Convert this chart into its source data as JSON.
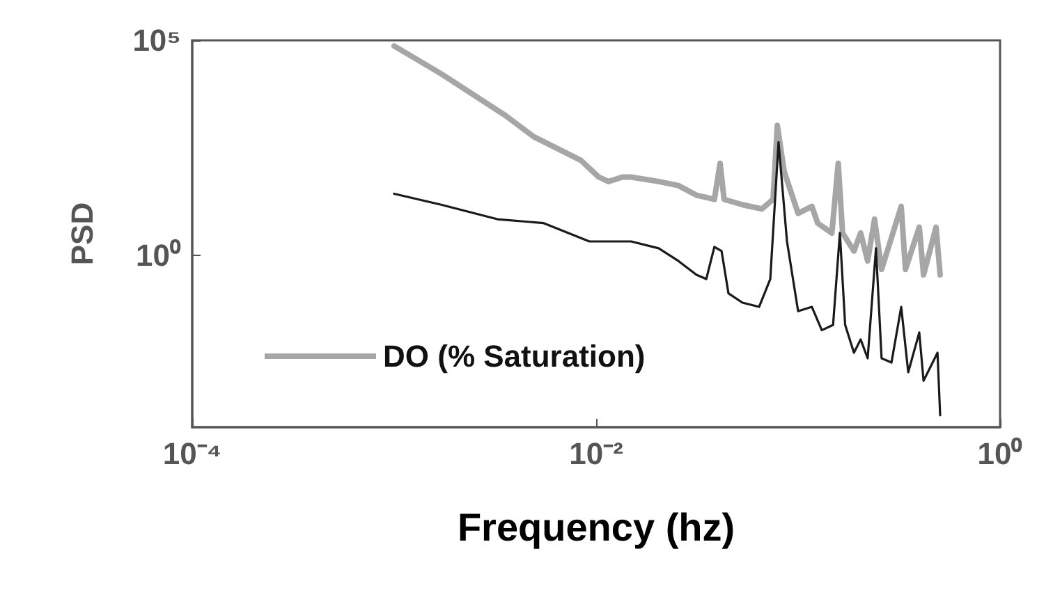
{
  "chart_data": {
    "type": "line",
    "xlabel": "Frequency (hz)",
    "ylabel": "PSD",
    "log": "xy",
    "grid": false,
    "legend": "bottom left",
    "marker": "none",
    "xlim": [
      0.0001,
      1
    ],
    "xticks": [
      {
        "value": 0.0001,
        "label": "10⁻⁴"
      },
      {
        "value": 0.01,
        "label": "10⁻²"
      },
      {
        "value": 1,
        "label": "10⁰"
      }
    ],
    "ylim": [
      0.0001,
      100000
    ],
    "yticks": [
      {
        "value": 1,
        "label": "10⁰"
      },
      {
        "value": 100000,
        "label": "10⁵"
      }
    ],
    "series": [
      {
        "name": "DO (% Saturation)",
        "color": "#a6a6a6",
        "x": [
          0.001,
          0.00171,
          0.00356,
          0.0049,
          0.0084,
          0.0103,
          0.0115,
          0.0135,
          0.0149,
          0.0204,
          0.0255,
          0.0314,
          0.0385,
          0.0411,
          0.043,
          0.053,
          0.0662,
          0.0752,
          0.0789,
          0.0853,
          0.1,
          0.117,
          0.125,
          0.147,
          0.158,
          0.166,
          0.189,
          0.204,
          0.221,
          0.239,
          0.259,
          0.324,
          0.34,
          0.398,
          0.418,
          0.482,
          0.505
        ],
        "values": [
          74000,
          16600,
          1780,
          575,
          162,
          66,
          52,
          66,
          66,
          52,
          42,
          25,
          20,
          138,
          20,
          15,
          12,
          20,
          1050,
          89,
          9.4,
          13.7,
          5.6,
          3.3,
          138,
          3.3,
          1.25,
          3.3,
          0.74,
          6.9,
          0.47,
          13.7,
          0.47,
          4.5,
          0.35,
          4.5,
          0.35
        ]
      },
      {
        "color": "#1a1a1a",
        "x": [
          0.001,
          0.00171,
          0.00324,
          0.0055,
          0.00925,
          0.0135,
          0.0149,
          0.0204,
          0.0255,
          0.0314,
          0.0351,
          0.0385,
          0.0418,
          0.0452,
          0.053,
          0.0641,
          0.0728,
          0.08,
          0.0881,
          0.1,
          0.117,
          0.131,
          0.149,
          0.161,
          0.171,
          0.189,
          0.204,
          0.221,
          0.243,
          0.259,
          0.29,
          0.324,
          0.351,
          0.398,
          0.418,
          0.49,
          0.505
        ],
        "values": [
          27,
          15,
          6.9,
          5.6,
          2.1,
          2.1,
          2.1,
          1.45,
          0.74,
          0.35,
          0.28,
          1.57,
          1.25,
          0.13,
          0.079,
          0.063,
          0.28,
          427,
          2.1,
          0.05,
          0.063,
          0.018,
          0.024,
          3.3,
          0.024,
          0.0054,
          0.011,
          0.004,
          1.45,
          0.004,
          0.0032,
          0.063,
          0.0019,
          0.016,
          0.0012,
          0.0054,
          0.00019
        ]
      }
    ]
  }
}
